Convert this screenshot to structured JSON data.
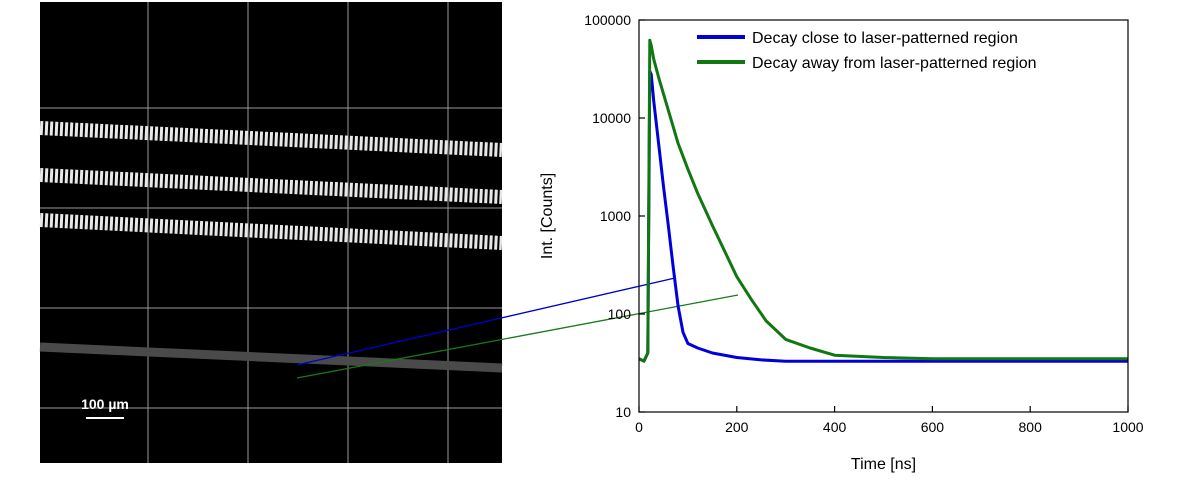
{
  "micrograph": {
    "scale_bar_label": "100 µm"
  },
  "chart_data": {
    "type": "line",
    "xlabel": "Time [ns]",
    "ylabel": "Int. [Counts]",
    "xlim": [
      0,
      1000
    ],
    "ylim": [
      10,
      100000
    ],
    "yscale": "log",
    "x_ticks": [
      0,
      200,
      400,
      600,
      800,
      1000
    ],
    "y_ticks": [
      10,
      100,
      1000,
      10000,
      100000
    ],
    "x_tick_labels": [
      "0",
      "200",
      "400",
      "600",
      "800",
      "1000"
    ],
    "y_tick_labels": [
      "10",
      "100",
      "1000",
      "10000",
      "100000"
    ],
    "legend_position": "top-right",
    "grid": false,
    "series": [
      {
        "name": "Decay close to laser-patterned region",
        "color": "#0000dd",
        "x": [
          0,
          10,
          18,
          22,
          25,
          30,
          40,
          50,
          60,
          70,
          80,
          90,
          100,
          120,
          150,
          200,
          250,
          300,
          400,
          500,
          600,
          700,
          800,
          900,
          1000
        ],
        "y": [
          35,
          33,
          40,
          30000,
          28000,
          15000,
          5500,
          2000,
          800,
          300,
          120,
          65,
          50,
          45,
          40,
          36,
          34,
          33,
          33,
          33,
          33,
          33,
          33,
          33,
          33
        ]
      },
      {
        "name": "Decay away from laser-patterned region",
        "color": "#117711",
        "x": [
          0,
          10,
          18,
          22,
          25,
          30,
          40,
          60,
          80,
          100,
          120,
          150,
          180,
          200,
          230,
          260,
          300,
          350,
          400,
          500,
          600,
          700,
          800,
          900,
          1000
        ],
        "y": [
          35,
          33,
          40,
          62000,
          55000,
          40000,
          26000,
          12000,
          5500,
          3000,
          1700,
          800,
          390,
          240,
          140,
          85,
          55,
          45,
          38,
          36,
          35,
          35,
          35,
          35,
          35
        ]
      }
    ]
  }
}
